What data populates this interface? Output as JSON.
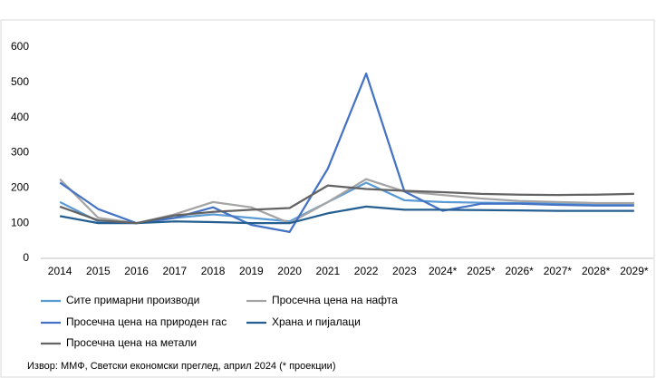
{
  "chart_data": {
    "type": "line",
    "categories": [
      "2014",
      "2015",
      "2016",
      "2017",
      "2018",
      "2019",
      "2020",
      "2021",
      "2022",
      "2023",
      "2024*",
      "2025*",
      "2026*",
      "2027*",
      "2028*",
      "2029*"
    ],
    "series": [
      {
        "name": "Сите примарни производи",
        "color": "#5b9bd5",
        "values": [
          160,
          105,
          100,
          115,
          125,
          115,
          105,
          160,
          215,
          165,
          160,
          158,
          157,
          156,
          155,
          155
        ]
      },
      {
        "name": "Просечна цена на нафта",
        "color": "#a5a5a5",
        "values": [
          225,
          115,
          100,
          125,
          160,
          145,
          100,
          160,
          225,
          190,
          180,
          170,
          163,
          160,
          157,
          157
        ]
      },
      {
        "name": "Просечна цена на природен гас",
        "color": "#4472c4",
        "values": [
          215,
          140,
          100,
          115,
          145,
          95,
          75,
          255,
          525,
          190,
          135,
          155,
          155,
          152,
          150,
          150
        ]
      },
      {
        "name": "Храна и пијалаци",
        "color": "#255e91",
        "values": [
          120,
          100,
          100,
          105,
          103,
          100,
          100,
          128,
          147,
          138,
          138,
          137,
          136,
          135,
          135,
          135
        ]
      },
      {
        "name": "Просечна цена на метали",
        "color": "#636363",
        "values": [
          147,
          108,
          100,
          122,
          132,
          138,
          143,
          207,
          197,
          192,
          188,
          183,
          181,
          180,
          181,
          183
        ]
      }
    ],
    "ylim": [
      0,
      600
    ],
    "yticks": [
      0,
      100,
      200,
      300,
      400,
      500,
      600
    ],
    "source": "Извор: ММФ, Светски економски преглед, април 2024 (* проекции)"
  }
}
